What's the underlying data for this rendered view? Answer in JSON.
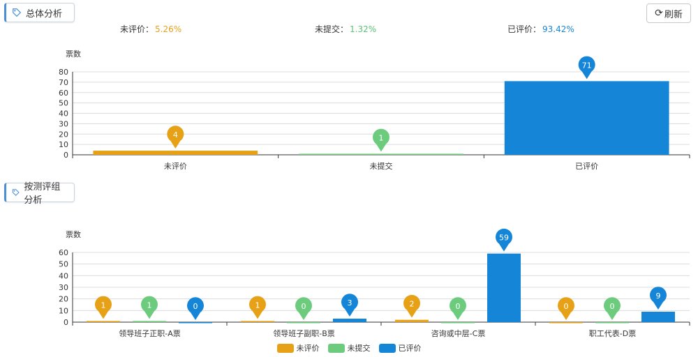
{
  "header": {
    "tab1_label": "总体分析",
    "tab2_label": "按测评组分析",
    "refresh_label": "刷新"
  },
  "stats": [
    {
      "label": "未评价：",
      "value": "5.26%",
      "color": "#e6a117"
    },
    {
      "label": "未提交：",
      "value": "1.32%",
      "color": "#5cc476"
    },
    {
      "label": "已评价：",
      "value": "93.42%",
      "color": "#1a86d6"
    }
  ],
  "colors": {
    "unrated": "#e6a117",
    "unsubmitted": "#6dcb7d",
    "rated": "#1585d8"
  },
  "chart_data": [
    {
      "type": "bar",
      "ylabel": "票数",
      "ylim": [
        0,
        80
      ],
      "yticks": [
        0,
        10,
        20,
        30,
        40,
        50,
        60,
        70,
        80
      ],
      "categories": [
        "未评价",
        "未提交",
        "已评价"
      ],
      "values": [
        4,
        1,
        71
      ],
      "grid": true
    },
    {
      "type": "bar",
      "ylabel": "票数",
      "ylim": [
        0,
        60
      ],
      "yticks": [
        0,
        10,
        20,
        30,
        40,
        50,
        60
      ],
      "categories": [
        "领导班子正职-A票",
        "领导班子副职-B票",
        "咨询或中层-C票",
        "职工代表-D票"
      ],
      "series": [
        {
          "name": "未评价",
          "values": [
            1,
            1,
            2,
            0
          ]
        },
        {
          "name": "未提交",
          "values": [
            1,
            0,
            0,
            0
          ]
        },
        {
          "name": "已评价",
          "values": [
            0,
            3,
            59,
            9
          ]
        }
      ],
      "legend": "bottom",
      "grid": true
    }
  ]
}
